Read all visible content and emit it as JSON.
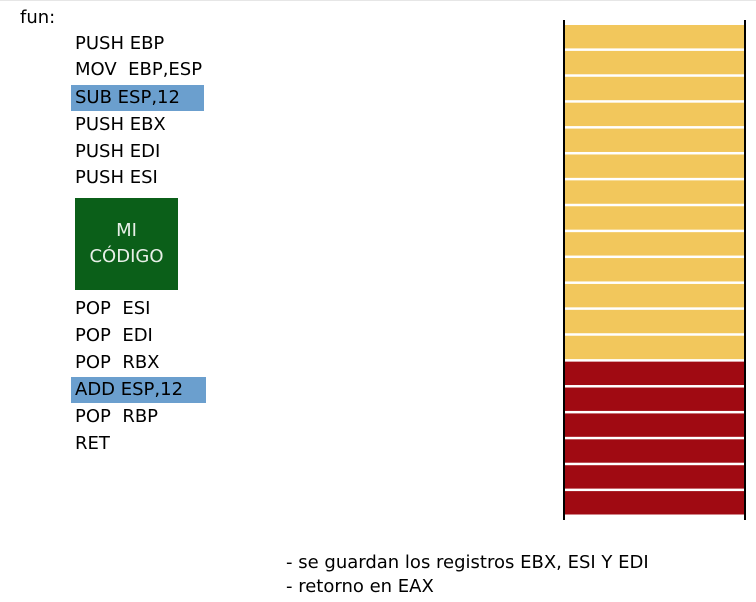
{
  "function_label": "fun:",
  "code_lines": [
    "PUSH EBP",
    "MOV  EBP,ESP",
    "SUB ESP,12",
    "PUSH EBX",
    "PUSH EDI",
    "PUSH ESI",
    "POP  ESI",
    "POP  EDI",
    "POP  RBX",
    "ADD ESP,12",
    "POP  RBP",
    "RET"
  ],
  "highlighted_lines": [
    2,
    9
  ],
  "code_block": {
    "line1": "MI",
    "line2": "CÓDIGO"
  },
  "stack": {
    "total_slots": 19,
    "upper_slots": 13,
    "lower_slots": 6,
    "upper_color": "#f2c75c",
    "lower_color": "#a00a12",
    "separator_color": "#ffffff"
  },
  "colors": {
    "highlight": "#6b9fce",
    "code_block_bg": "#0b5f19",
    "code_block_text": "#e8efe8"
  },
  "notes": [
    "- se guardan los registros EBX, ESI Y EDI",
    "- retorno en EAX"
  ]
}
